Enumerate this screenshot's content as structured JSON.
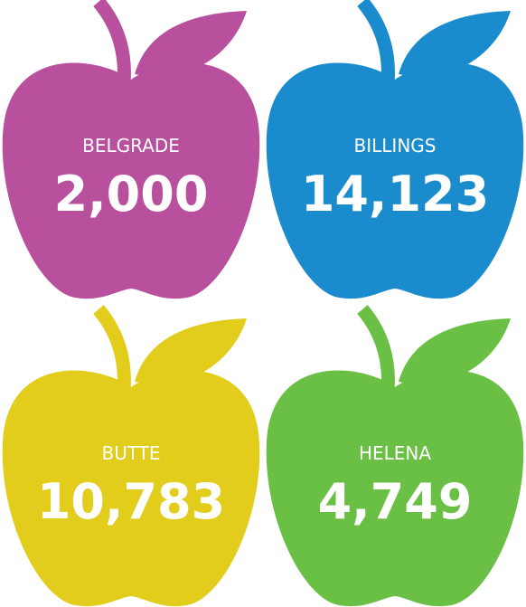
{
  "items": [
    {
      "label": "BELGRADE",
      "value": "2,000",
      "color": "#b8509e"
    },
    {
      "label": "BILLINGS",
      "value": "14,123",
      "color": "#1a8ccd"
    },
    {
      "label": "BUTTE",
      "value": "10,783",
      "color": "#e2cc1c"
    },
    {
      "label": "HELENA",
      "value": "4,749",
      "color": "#6abf45"
    }
  ]
}
